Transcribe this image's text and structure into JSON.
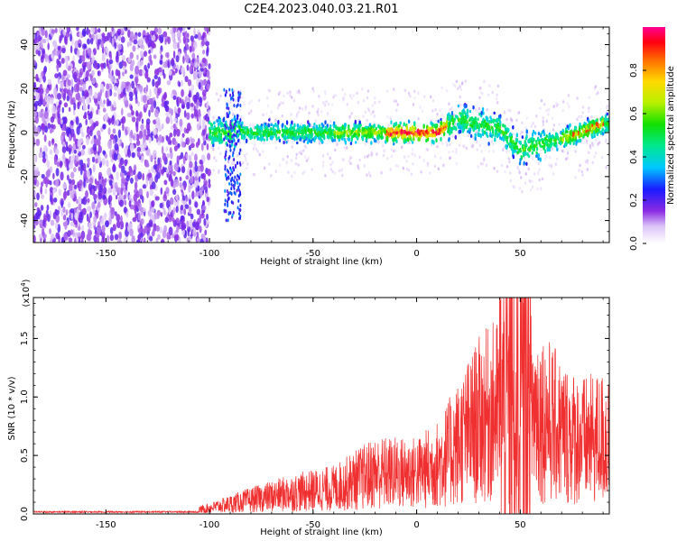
{
  "chart_data": [
    {
      "type": "heatmap",
      "title": "C2E4.2023.040.03.21.R01",
      "xlabel": "Height of straight line (km)",
      "ylabel": "Frequency (Hz)",
      "xlim": [
        -185,
        93
      ],
      "ylim": [
        -50,
        48
      ],
      "x_ticks": [
        -150,
        -100,
        -50,
        0,
        50
      ],
      "y_ticks": [
        -40,
        -20,
        0,
        20,
        40
      ],
      "colorbar": {
        "label": "Normalized spectral amplitude",
        "range": [
          0,
          1
        ],
        "ticks": [
          0.0,
          0.2,
          0.4,
          0.6,
          0.8
        ]
      },
      "ridge": {
        "description_points": [
          {
            "x": -100,
            "y": 0
          },
          {
            "x": -80,
            "y": 0
          },
          {
            "x": -20,
            "y": 0
          },
          {
            "x": 10,
            "y": 0
          },
          {
            "x": 20,
            "y": 6
          },
          {
            "x": 40,
            "y": 2
          },
          {
            "x": 50,
            "y": -8
          },
          {
            "x": 70,
            "y": -3
          },
          {
            "x": 90,
            "y": 4
          }
        ]
      }
    },
    {
      "type": "line",
      "xlabel": "Height of straight line (km)",
      "ylabel": "SNR (10 * v/v)",
      "y_multiplier": "(x10⁴)",
      "y_multiplier_base": "(x10",
      "y_multiplier_exp": "4",
      "y_multiplier_close": ")",
      "xlim": [
        -185,
        93
      ],
      "ylim": [
        0,
        1.85
      ],
      "x_ticks": [
        -150,
        -100,
        -50,
        0,
        50
      ],
      "y_ticks": [
        0.0,
        0.5,
        1.0,
        1.5
      ],
      "series": [
        {
          "color": "#f03030",
          "envelope": [
            {
              "x": -185,
              "y": 0.01
            },
            {
              "x": -110,
              "y": 0.02
            },
            {
              "x": -100,
              "y": 0.05
            },
            {
              "x": -80,
              "y": 0.12
            },
            {
              "x": -60,
              "y": 0.18
            },
            {
              "x": -40,
              "y": 0.22
            },
            {
              "x": -20,
              "y": 0.35
            },
            {
              "x": 0,
              "y": 0.35
            },
            {
              "x": 10,
              "y": 0.42
            },
            {
              "x": 20,
              "y": 0.6
            },
            {
              "x": 30,
              "y": 0.8
            },
            {
              "x": 40,
              "y": 0.9
            },
            {
              "x": 50,
              "y": 1.0
            },
            {
              "x": 60,
              "y": 0.85
            },
            {
              "x": 70,
              "y": 0.7
            },
            {
              "x": 80,
              "y": 0.62
            },
            {
              "x": 93,
              "y": 0.65
            }
          ]
        }
      ]
    }
  ]
}
